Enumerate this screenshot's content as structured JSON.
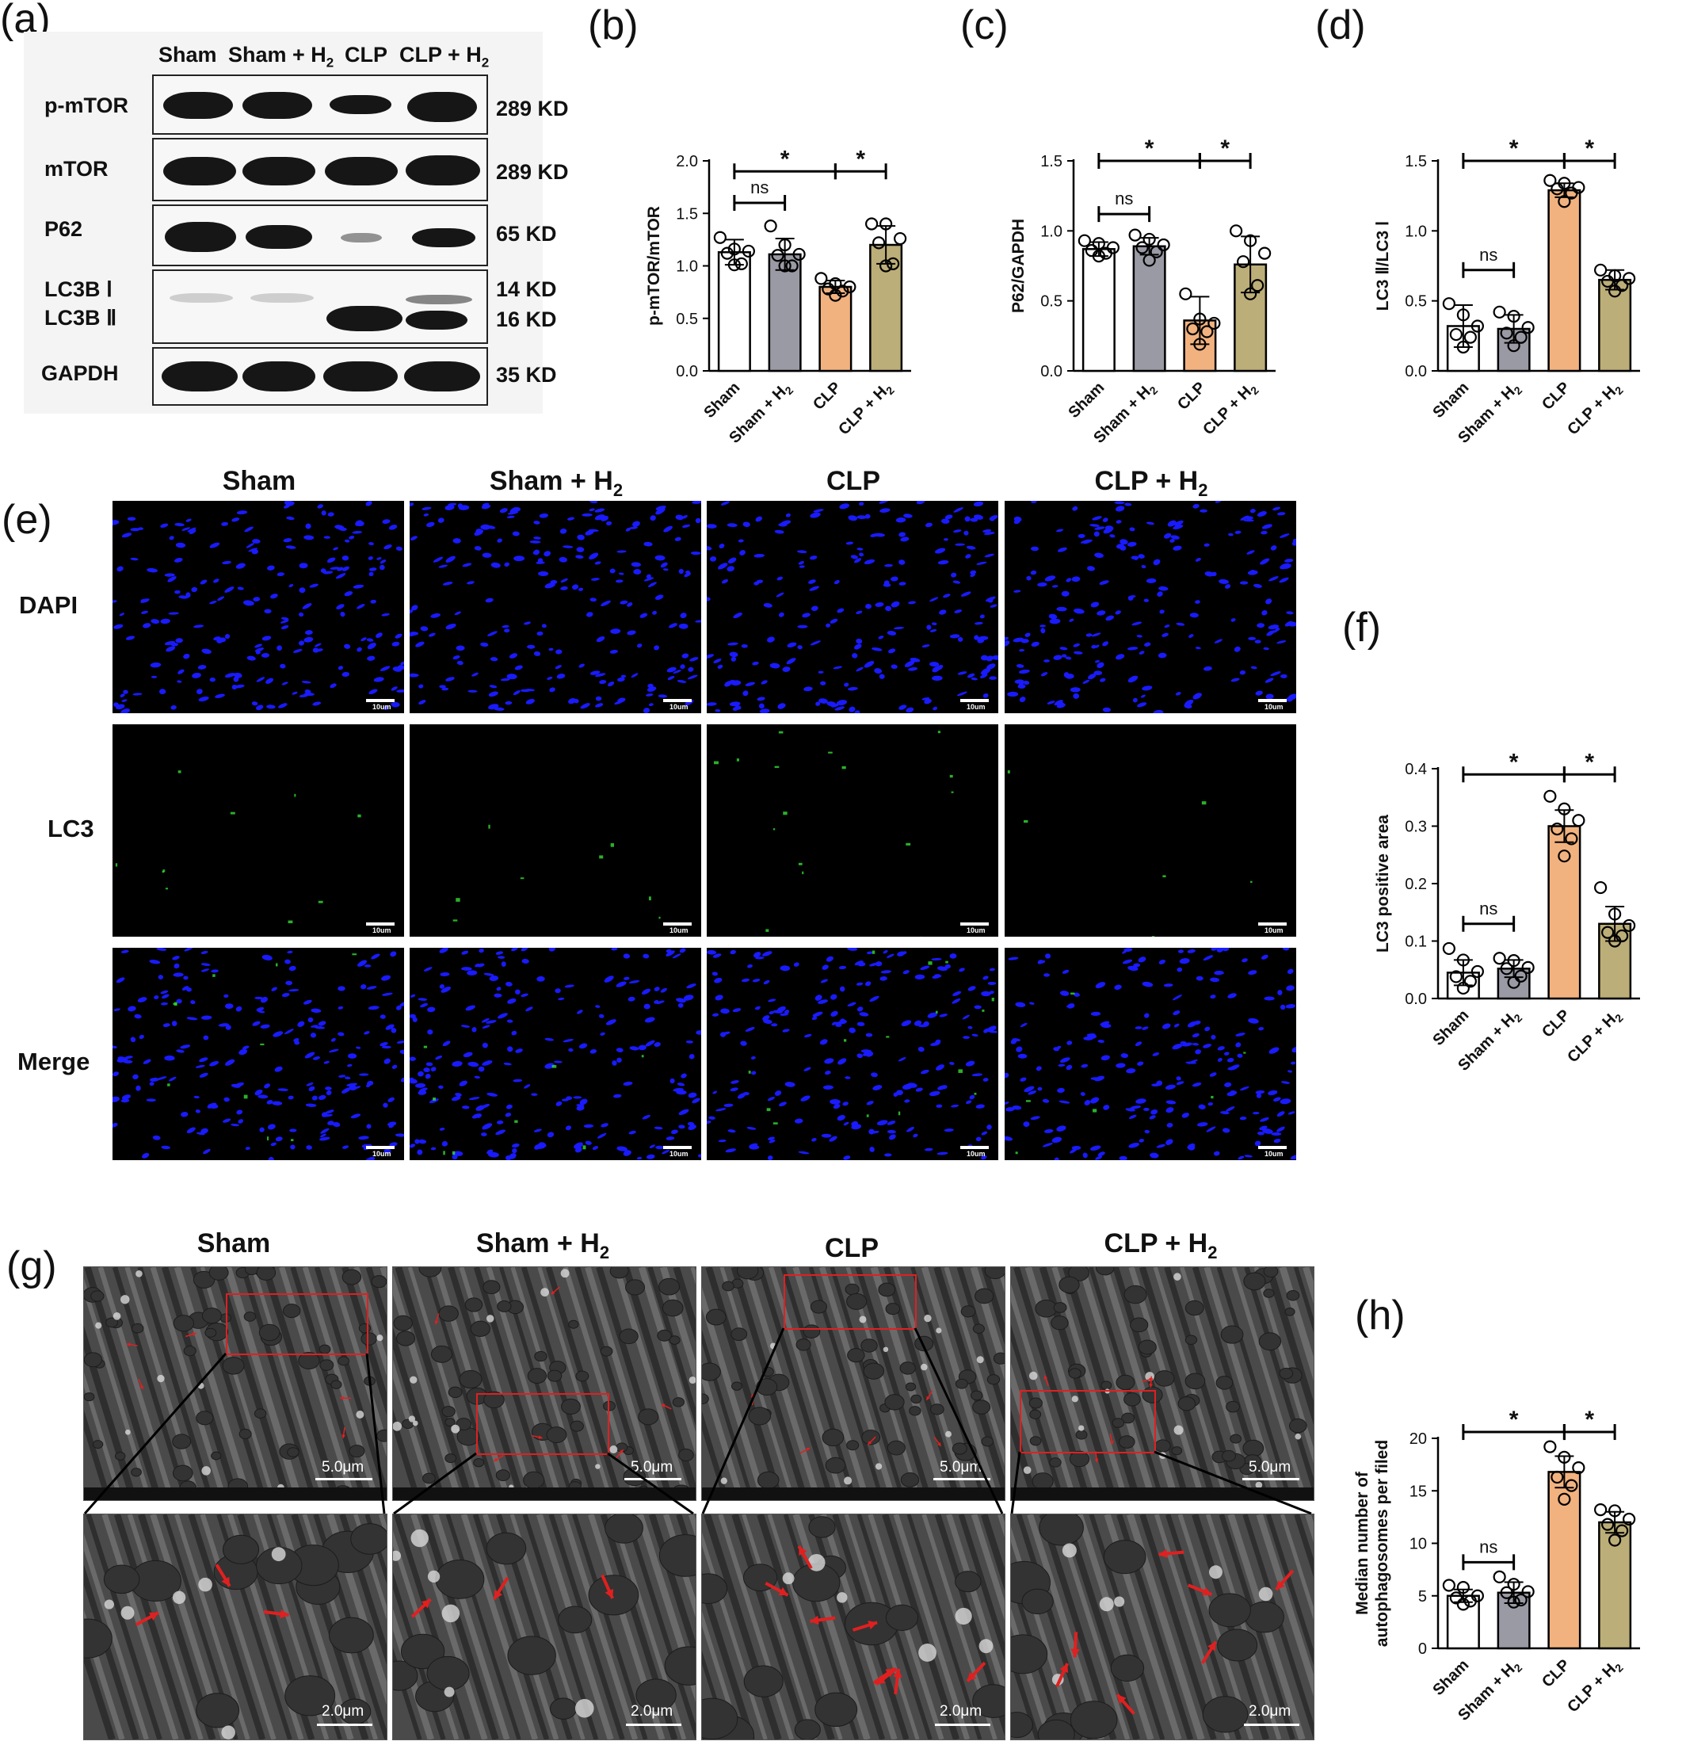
{
  "panel_labels": {
    "a": "(a)",
    "b": "(b)",
    "c": "(c)",
    "d": "(d)",
    "e": "(e)",
    "f": "(f)",
    "g": "(g)",
    "h": "(h)"
  },
  "groups": [
    "Sham",
    "Sham + H2",
    "CLP",
    "CLP + H2"
  ],
  "colors": {
    "Sham": "#ffffff",
    "Sham + H2": "#9a9aa4",
    "CLP": "#f2b27f",
    "CLP + H2": "#bcae78",
    "dapi": "#1a1aff",
    "lc3": "#33dd33",
    "arrow": "#e02020",
    "box": "#e02020"
  },
  "western_blot": {
    "lane_headers": [
      "Sham",
      "Sham + H",
      "CLP",
      "CLP + H"
    ],
    "subscript": "2",
    "rows": [
      {
        "label": "p-mTOR",
        "size": "289 KD"
      },
      {
        "label": "mTOR",
        "size": "289 KD"
      },
      {
        "label": "P62",
        "size": "65 KD"
      },
      {
        "label": "LC3B Ⅰ",
        "size": "14 KD"
      },
      {
        "label": "LC3B Ⅱ",
        "size": "16 KD"
      },
      {
        "label": "GAPDH",
        "size": "35 KD"
      }
    ]
  },
  "if_panel": {
    "headers": [
      "Sham",
      "Sham + H",
      "CLP",
      "CLP + H"
    ],
    "subscript": "2",
    "rows": [
      "DAPI",
      "LC3",
      "Merge"
    ],
    "scale_label": "10um"
  },
  "tem_panel": {
    "headers": [
      "Sham",
      "Sham + H",
      "CLP",
      "CLP + H"
    ],
    "subscript": "2",
    "scale_top": "5.0μm",
    "scale_bottom": "2.0μm"
  },
  "chart_data": [
    {
      "id": "b",
      "type": "bar",
      "ylabel": "p-mTOR/mTOR",
      "ylim": [
        0,
        2.0
      ],
      "yticks": [
        "0.0",
        "0.5",
        "1.0",
        "1.5",
        "2.0"
      ],
      "categories": [
        "Sham",
        "Sham + H2",
        "CLP",
        "CLP + H2"
      ],
      "values": [
        1.13,
        1.11,
        0.8,
        1.2
      ],
      "errors": [
        0.12,
        0.15,
        0.06,
        0.18
      ],
      "points": [
        [
          1.27,
          1.16,
          1.14,
          1.12,
          1.02,
          1.01
        ],
        [
          1.38,
          1.2,
          1.11,
          1.1,
          1.0,
          1.0
        ],
        [
          0.88,
          0.83,
          0.8,
          0.78,
          0.76,
          0.72
        ],
        [
          1.4,
          1.4,
          1.26,
          1.22,
          1.02,
          1.0
        ]
      ],
      "significance": [
        {
          "from": 0,
          "to": 1,
          "label": "ns",
          "level": 1.6
        },
        {
          "from": 0,
          "to": 2,
          "label": "*",
          "level": 1.9
        },
        {
          "from": 2,
          "to": 3,
          "label": "*",
          "level": 1.9
        }
      ]
    },
    {
      "id": "c",
      "type": "bar",
      "ylabel": "P62/GAPDH",
      "ylim": [
        0,
        1.5
      ],
      "yticks": [
        "0.0",
        "0.5",
        "1.0",
        "1.5"
      ],
      "categories": [
        "Sham",
        "Sham + H2",
        "CLP",
        "CLP + H2"
      ],
      "values": [
        0.87,
        0.89,
        0.36,
        0.76
      ],
      "errors": [
        0.05,
        0.06,
        0.17,
        0.2
      ],
      "points": [
        [
          0.93,
          0.91,
          0.88,
          0.86,
          0.84,
          0.82
        ],
        [
          0.97,
          0.94,
          0.9,
          0.88,
          0.85,
          0.79
        ],
        [
          0.55,
          0.37,
          0.34,
          0.3,
          0.28,
          0.19
        ],
        [
          1.0,
          0.93,
          0.84,
          0.78,
          0.61,
          0.55
        ]
      ],
      "significance": [
        {
          "from": 0,
          "to": 1,
          "label": "ns",
          "level": 1.12
        },
        {
          "from": 0,
          "to": 2,
          "label": "*",
          "level": 1.5
        },
        {
          "from": 2,
          "to": 3,
          "label": "*",
          "level": 1.5
        }
      ]
    },
    {
      "id": "d",
      "type": "bar",
      "ylabel": "LC3 Ⅱ/LC3 Ⅰ",
      "ylim": [
        0,
        1.5
      ],
      "yticks": [
        "0.0",
        "0.5",
        "1.0",
        "1.5"
      ],
      "categories": [
        "Sham",
        "Sham + H2",
        "CLP",
        "CLP + H2"
      ],
      "values": [
        0.32,
        0.3,
        1.29,
        0.65
      ],
      "errors": [
        0.15,
        0.1,
        0.05,
        0.07
      ],
      "points": [
        [
          0.48,
          0.4,
          0.32,
          0.26,
          0.24,
          0.17
        ],
        [
          0.42,
          0.39,
          0.31,
          0.27,
          0.24,
          0.18
        ],
        [
          1.36,
          1.34,
          1.31,
          1.3,
          1.27,
          1.21
        ],
        [
          0.72,
          0.68,
          0.66,
          0.64,
          0.61,
          0.57
        ]
      ],
      "significance": [
        {
          "from": 0,
          "to": 1,
          "label": "ns",
          "level": 0.72
        },
        {
          "from": 0,
          "to": 2,
          "label": "*",
          "level": 1.5
        },
        {
          "from": 2,
          "to": 3,
          "label": "*",
          "level": 1.5
        }
      ]
    },
    {
      "id": "f",
      "type": "bar",
      "ylabel": "LC3 positive area",
      "ylim": [
        0,
        0.4
      ],
      "yticks": [
        "0.0",
        "0.1",
        "0.2",
        "0.3",
        "0.4"
      ],
      "categories": [
        "Sham",
        "Sham + H2",
        "CLP",
        "CLP + H2"
      ],
      "values": [
        0.045,
        0.052,
        0.3,
        0.13
      ],
      "errors": [
        0.022,
        0.015,
        0.028,
        0.03
      ],
      "points": [
        [
          0.087,
          0.067,
          0.047,
          0.038,
          0.03,
          0.018
        ],
        [
          0.07,
          0.066,
          0.054,
          0.052,
          0.039,
          0.028
        ],
        [
          0.352,
          0.33,
          0.31,
          0.295,
          0.278,
          0.248
        ],
        [
          0.193,
          0.147,
          0.127,
          0.115,
          0.109,
          0.1
        ]
      ],
      "significance": [
        {
          "from": 0,
          "to": 1,
          "label": "ns",
          "level": 0.13
        },
        {
          "from": 0,
          "to": 2,
          "label": "*",
          "level": 0.39
        },
        {
          "from": 2,
          "to": 3,
          "label": "*",
          "level": 0.39
        }
      ]
    },
    {
      "id": "h",
      "type": "bar",
      "ylabel": "Median number of autophagosomes per filed",
      "ylim": [
        0,
        20
      ],
      "yticks": [
        "0",
        "5",
        "10",
        "15",
        "20"
      ],
      "categories": [
        "Sham",
        "Sham + H2",
        "CLP",
        "CLP + H2"
      ],
      "values": [
        5.0,
        5.3,
        16.8,
        12.0
      ],
      "errors": [
        0.6,
        1.0,
        1.5,
        1.0
      ],
      "points": [
        [
          6.0,
          5.8,
          5.0,
          4.8,
          4.5,
          4.2
        ],
        [
          6.8,
          6.1,
          5.4,
          5.3,
          4.6,
          4.4
        ],
        [
          19.2,
          18.2,
          17.2,
          16.3,
          15.5,
          14.2
        ],
        [
          13.2,
          13.1,
          12.3,
          11.8,
          11.2,
          10.3
        ]
      ],
      "significance": [
        {
          "from": 0,
          "to": 1,
          "label": "ns",
          "level": 8.2
        },
        {
          "from": 0,
          "to": 2,
          "label": "*",
          "level": 20.6
        },
        {
          "from": 2,
          "to": 3,
          "label": "*",
          "level": 20.6
        }
      ]
    }
  ]
}
